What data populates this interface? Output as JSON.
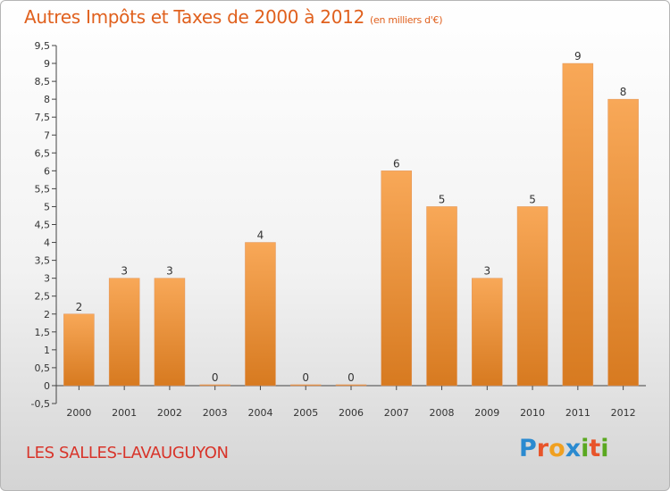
{
  "title": "Autres Impôts et Taxes de 2000 à 2012",
  "unit": "(en milliers d'€)",
  "place": "LES SALLES-LAVAUGUYON",
  "logo": {
    "letters": [
      "P",
      "r",
      "o",
      "x",
      "i",
      "t",
      "i"
    ],
    "colors": [
      "#2a8ad0",
      "#e8542a",
      "#f0a020",
      "#2a8ad0",
      "#5aa820",
      "#e8542a",
      "#5aa820"
    ]
  },
  "colors": {
    "bar_top": "#f8a858",
    "bar_bottom": "#d77a20",
    "title": "#e0601d",
    "place": "#d8342a"
  },
  "chart_data": {
    "type": "bar",
    "categories": [
      "2000",
      "2001",
      "2002",
      "2003",
      "2004",
      "2005",
      "2006",
      "2007",
      "2008",
      "2009",
      "2010",
      "2011",
      "2012"
    ],
    "values": [
      2,
      3,
      3,
      0,
      4,
      0,
      0,
      6,
      5,
      3,
      5,
      9,
      8
    ],
    "title": "Autres Impôts et Taxes de 2000 à 2012",
    "xlabel": "",
    "ylabel": "",
    "ylim": [
      -0.5,
      9.5
    ],
    "yticks": [
      "-0,5",
      "0",
      "0,5",
      "1",
      "1,5",
      "2",
      "2,5",
      "3",
      "3,5",
      "4",
      "4,5",
      "5",
      "5,5",
      "6",
      "6,5",
      "7",
      "7,5",
      "8",
      "8,5",
      "9",
      "9,5"
    ],
    "grid": false
  }
}
